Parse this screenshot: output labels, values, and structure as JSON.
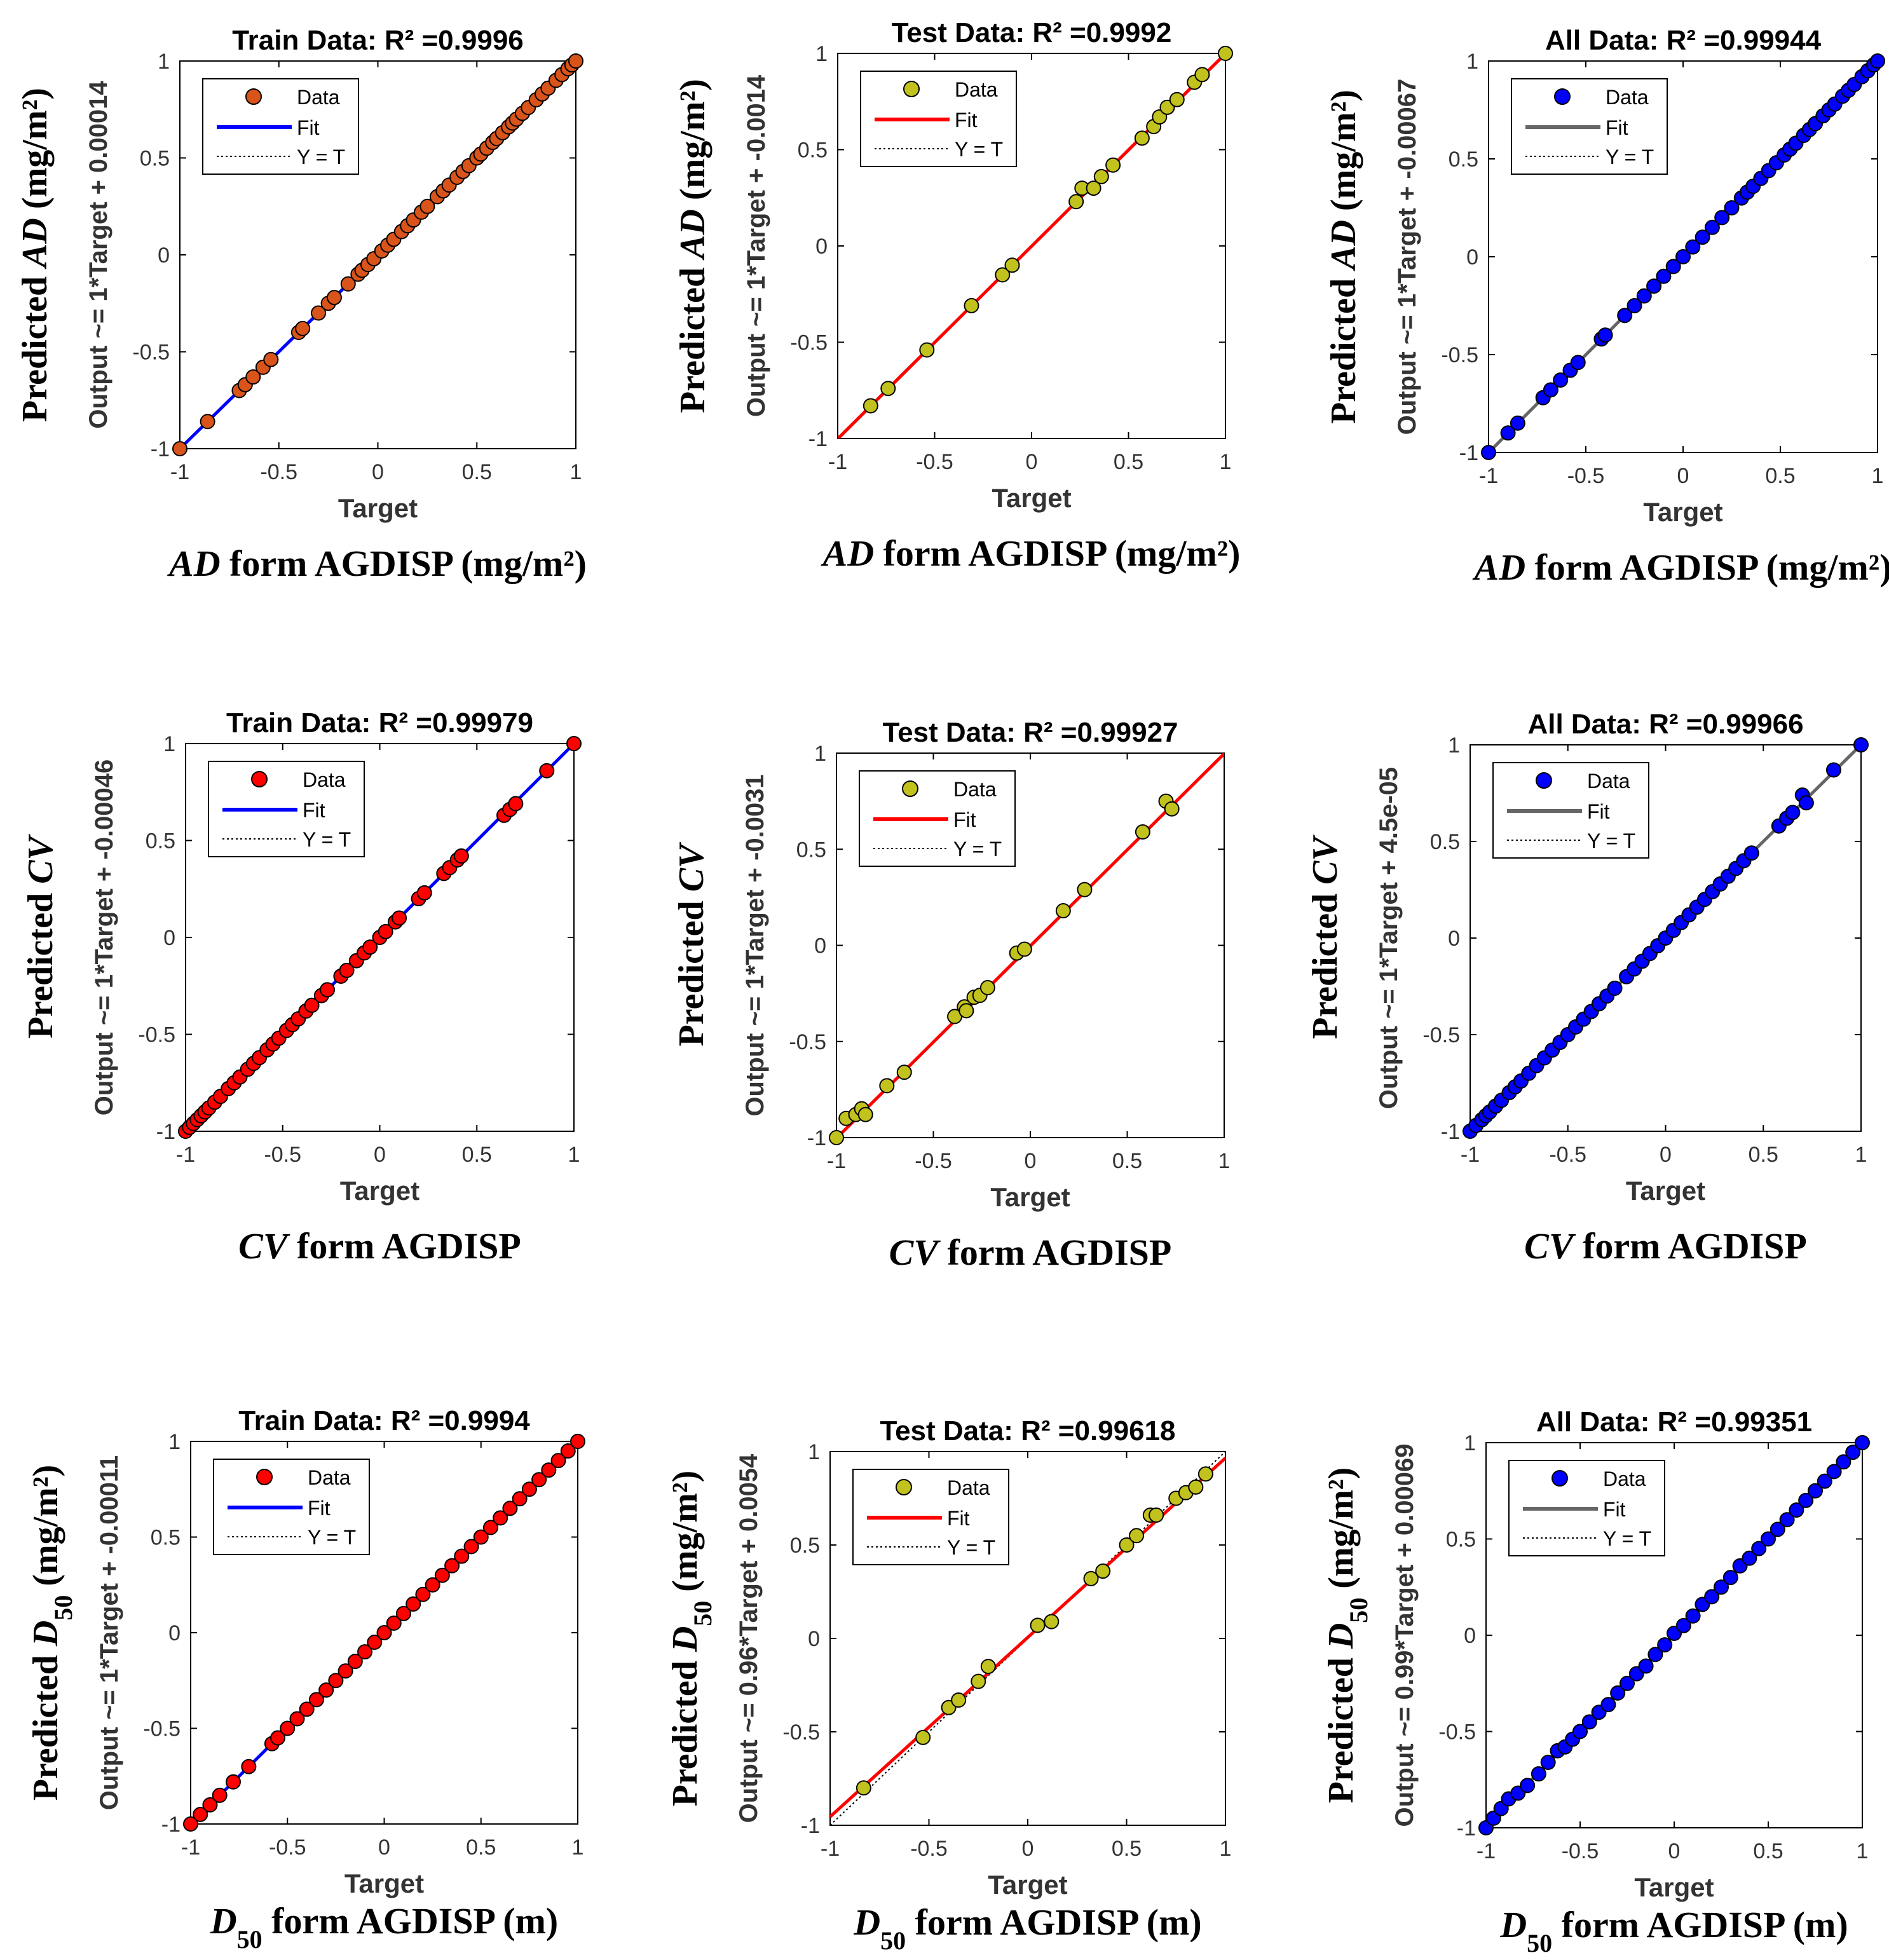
{
  "figure": {
    "axis_tick_labels": [
      "-1",
      "-0.5",
      "0",
      "0.5",
      "1"
    ],
    "legend": {
      "data": "Data",
      "fit": "Fit",
      "yt": "Y = T"
    }
  },
  "chart_data": [
    {
      "id": "ad-train",
      "type": "scatter",
      "title": "Train Data: R² =0.9996",
      "xlabel": "Target",
      "ylabel": "Output ~= 1*Target + 0.00014",
      "outer_ylabel": [
        "Predicted ",
        "AD",
        " (mg/m²)"
      ],
      "caption": [
        "AD",
        " form AGDISP (mg/m²)"
      ],
      "xlim": [
        -1,
        1
      ],
      "ylim": [
        -1,
        1
      ],
      "fit": {
        "slope": 1,
        "intercept": 0.00014
      },
      "marker_color": "#d9541a",
      "fit_color": "#0000ff",
      "x": [
        -1,
        -0.86,
        -0.7,
        -0.67,
        -0.63,
        -0.58,
        -0.54,
        -0.4,
        -0.38,
        -0.3,
        -0.25,
        -0.22,
        -0.15,
        -0.1,
        -0.08,
        -0.05,
        -0.02,
        0.02,
        0.05,
        0.08,
        0.12,
        0.15,
        0.18,
        0.22,
        0.25,
        0.3,
        0.33,
        0.36,
        0.4,
        0.43,
        0.46,
        0.5,
        0.52,
        0.55,
        0.58,
        0.6,
        0.63,
        0.66,
        0.68,
        0.7,
        0.73,
        0.76,
        0.8,
        0.83,
        0.86,
        0.9,
        0.93,
        0.96,
        0.98,
        1
      ],
      "y": [
        -1,
        -0.86,
        -0.7,
        -0.67,
        -0.63,
        -0.58,
        -0.54,
        -0.4,
        -0.38,
        -0.3,
        -0.25,
        -0.22,
        -0.15,
        -0.1,
        -0.08,
        -0.05,
        -0.02,
        0.02,
        0.05,
        0.08,
        0.12,
        0.15,
        0.18,
        0.22,
        0.25,
        0.3,
        0.33,
        0.36,
        0.4,
        0.43,
        0.46,
        0.5,
        0.52,
        0.55,
        0.58,
        0.6,
        0.63,
        0.66,
        0.68,
        0.7,
        0.73,
        0.76,
        0.8,
        0.83,
        0.86,
        0.9,
        0.93,
        0.96,
        0.98,
        1
      ]
    },
    {
      "id": "ad-test",
      "type": "scatter",
      "title": "Test Data: R² =0.9992",
      "xlabel": "Target",
      "ylabel": "Output ~= 1*Target + -0.0014",
      "outer_ylabel": [
        "Predicted ",
        "AD",
        " (mg/m²)"
      ],
      "caption": [
        "AD",
        " form AGDISP (mg/m²)"
      ],
      "xlim": [
        -1,
        1
      ],
      "ylim": [
        -1,
        1
      ],
      "fit": {
        "slope": 1,
        "intercept": -0.0014
      },
      "marker_color": "#c2c21f",
      "fit_color": "#ff0000",
      "x": [
        -0.83,
        -0.74,
        -0.54,
        -0.31,
        -0.15,
        -0.1,
        0.23,
        0.26,
        0.32,
        0.36,
        0.42,
        0.57,
        0.63,
        0.66,
        0.7,
        0.75,
        0.84,
        0.88,
        1
      ],
      "y": [
        -0.83,
        -0.74,
        -0.54,
        -0.31,
        -0.15,
        -0.1,
        0.23,
        0.3,
        0.3,
        0.36,
        0.42,
        0.56,
        0.62,
        0.67,
        0.72,
        0.76,
        0.85,
        0.89,
        1
      ]
    },
    {
      "id": "ad-all",
      "type": "scatter",
      "title": "All Data: R² =0.99944",
      "xlabel": "Target",
      "ylabel": "Output ~= 1*Target + -0.00067",
      "outer_ylabel": [
        "Predicted ",
        "AD",
        " (mg/m²)"
      ],
      "caption": [
        "AD",
        " form AGDISP (mg/m²)"
      ],
      "xlim": [
        -1,
        1
      ],
      "ylim": [
        -1,
        1
      ],
      "fit": {
        "slope": 1,
        "intercept": -0.00067
      },
      "marker_color": "#0000ff",
      "fit_color": "#666666",
      "x": [
        -1,
        -0.9,
        -0.85,
        -0.72,
        -0.68,
        -0.63,
        -0.58,
        -0.54,
        -0.42,
        -0.4,
        -0.3,
        -0.25,
        -0.2,
        -0.15,
        -0.1,
        -0.05,
        0,
        0.05,
        0.1,
        0.15,
        0.2,
        0.25,
        0.3,
        0.33,
        0.36,
        0.4,
        0.44,
        0.48,
        0.52,
        0.55,
        0.58,
        0.62,
        0.65,
        0.68,
        0.72,
        0.75,
        0.78,
        0.82,
        0.85,
        0.88,
        0.92,
        0.95,
        0.98,
        1
      ],
      "y": [
        -1,
        -0.9,
        -0.85,
        -0.72,
        -0.68,
        -0.63,
        -0.58,
        -0.54,
        -0.42,
        -0.4,
        -0.3,
        -0.25,
        -0.2,
        -0.15,
        -0.1,
        -0.05,
        0,
        0.05,
        0.1,
        0.15,
        0.2,
        0.25,
        0.3,
        0.33,
        0.36,
        0.4,
        0.44,
        0.48,
        0.52,
        0.55,
        0.58,
        0.62,
        0.65,
        0.68,
        0.72,
        0.75,
        0.78,
        0.82,
        0.85,
        0.88,
        0.92,
        0.95,
        0.98,
        1
      ]
    },
    {
      "id": "cv-train",
      "type": "scatter",
      "title": "Train Data: R² =0.99979",
      "xlabel": "Target",
      "ylabel": "Output ~= 1*Target + -0.00046",
      "outer_ylabel": [
        "Predicted ",
        "CV",
        ""
      ],
      "caption": [
        "CV",
        " form AGDISP"
      ],
      "xlim": [
        -1,
        1
      ],
      "ylim": [
        -1,
        1
      ],
      "fit": {
        "slope": 1,
        "intercept": -0.00046
      },
      "marker_color": "#ff0000",
      "fit_color": "#0000ff",
      "x": [
        -1,
        -0.98,
        -0.96,
        -0.94,
        -0.92,
        -0.9,
        -0.88,
        -0.85,
        -0.82,
        -0.78,
        -0.75,
        -0.72,
        -0.68,
        -0.65,
        -0.62,
        -0.58,
        -0.55,
        -0.52,
        -0.48,
        -0.45,
        -0.42,
        -0.38,
        -0.35,
        -0.3,
        -0.27,
        -0.2,
        -0.17,
        -0.12,
        -0.08,
        -0.05,
        0,
        0.03,
        0.08,
        0.1,
        0.2,
        0.23,
        0.33,
        0.36,
        0.4,
        0.42,
        0.64,
        0.67,
        0.7,
        0.86,
        1
      ],
      "y": [
        -1,
        -0.98,
        -0.96,
        -0.94,
        -0.92,
        -0.9,
        -0.88,
        -0.85,
        -0.82,
        -0.78,
        -0.75,
        -0.72,
        -0.68,
        -0.65,
        -0.62,
        -0.58,
        -0.55,
        -0.52,
        -0.48,
        -0.45,
        -0.42,
        -0.38,
        -0.35,
        -0.3,
        -0.27,
        -0.2,
        -0.17,
        -0.12,
        -0.08,
        -0.05,
        0,
        0.03,
        0.08,
        0.1,
        0.2,
        0.23,
        0.33,
        0.36,
        0.4,
        0.42,
        0.63,
        0.66,
        0.69,
        0.86,
        1
      ]
    },
    {
      "id": "cv-test",
      "type": "scatter",
      "title": "Test Data: R² =0.99927",
      "xlabel": "Target",
      "ylabel": "Output ~= 1*Target + -0.0031",
      "outer_ylabel": [
        "Predicted ",
        "CV",
        ""
      ],
      "caption": [
        "CV",
        " form AGDISP"
      ],
      "xlim": [
        -1,
        1
      ],
      "ylim": [
        -1,
        1
      ],
      "fit": {
        "slope": 1,
        "intercept": -0.0031
      },
      "marker_color": "#c2c21f",
      "fit_color": "#ff0000",
      "x": [
        -1,
        -0.95,
        -0.9,
        -0.87,
        -0.85,
        -0.74,
        -0.65,
        -0.39,
        -0.34,
        -0.33,
        -0.29,
        -0.26,
        -0.22,
        -0.07,
        -0.03,
        0.17,
        0.28,
        0.58,
        0.7,
        0.73
      ],
      "y": [
        -1,
        -0.9,
        -0.88,
        -0.85,
        -0.88,
        -0.73,
        -0.66,
        -0.37,
        -0.32,
        -0.34,
        -0.27,
        -0.26,
        -0.22,
        -0.04,
        -0.02,
        0.18,
        0.29,
        0.59,
        0.75,
        0.71
      ]
    },
    {
      "id": "cv-all",
      "type": "scatter",
      "title": "All Data: R² =0.99966",
      "xlabel": "Target",
      "ylabel": "Output ~= 1*Target + 4.5e-05",
      "outer_ylabel": [
        "Predicted ",
        "CV",
        ""
      ],
      "caption": [
        "CV",
        " form AGDISP"
      ],
      "xlim": [
        -1,
        1
      ],
      "ylim": [
        -1,
        1
      ],
      "fit": {
        "slope": 1,
        "intercept": 4.5e-05
      },
      "marker_color": "#0000ff",
      "fit_color": "#666666",
      "x": [
        -1,
        -0.97,
        -0.94,
        -0.92,
        -0.9,
        -0.87,
        -0.84,
        -0.8,
        -0.77,
        -0.74,
        -0.7,
        -0.66,
        -0.62,
        -0.58,
        -0.54,
        -0.5,
        -0.46,
        -0.42,
        -0.38,
        -0.34,
        -0.3,
        -0.26,
        -0.2,
        -0.16,
        -0.12,
        -0.08,
        -0.04,
        0,
        0.04,
        0.08,
        0.12,
        0.16,
        0.2,
        0.24,
        0.28,
        0.32,
        0.36,
        0.4,
        0.44,
        0.58,
        0.62,
        0.65,
        0.7,
        0.72,
        0.86,
        1
      ],
      "y": [
        -1,
        -0.97,
        -0.94,
        -0.92,
        -0.9,
        -0.87,
        -0.84,
        -0.8,
        -0.77,
        -0.74,
        -0.7,
        -0.66,
        -0.62,
        -0.58,
        -0.54,
        -0.5,
        -0.46,
        -0.42,
        -0.38,
        -0.34,
        -0.3,
        -0.26,
        -0.2,
        -0.16,
        -0.12,
        -0.08,
        -0.04,
        0,
        0.04,
        0.08,
        0.12,
        0.16,
        0.2,
        0.24,
        0.28,
        0.32,
        0.36,
        0.4,
        0.44,
        0.58,
        0.62,
        0.65,
        0.74,
        0.7,
        0.87,
        1
      ]
    },
    {
      "id": "d50-train",
      "type": "scatter",
      "title": "Train Data: R² =0.9994",
      "xlabel": "Target",
      "ylabel": "Output ~= 1*Target + -0.00011",
      "outer_ylabel": [
        "Predicted ",
        "D",
        "50",
        " (mg/m²)"
      ],
      "caption": [
        "D",
        "50",
        "  form AGDISP (m)"
      ],
      "xlim": [
        -1,
        1
      ],
      "ylim": [
        -1,
        1
      ],
      "fit": {
        "slope": 1,
        "intercept": -0.00011
      },
      "marker_color": "#ff0000",
      "fit_color": "#0000ff",
      "x": [
        -1,
        -0.95,
        -0.9,
        -0.85,
        -0.78,
        -0.7,
        -0.58,
        -0.55,
        -0.5,
        -0.45,
        -0.4,
        -0.35,
        -0.3,
        -0.25,
        -0.2,
        -0.15,
        -0.1,
        -0.05,
        0,
        0.05,
        0.1,
        0.15,
        0.2,
        0.25,
        0.3,
        0.35,
        0.4,
        0.45,
        0.5,
        0.55,
        0.6,
        0.65,
        0.7,
        0.75,
        0.8,
        0.85,
        0.9,
        0.95,
        1
      ],
      "y": [
        -1,
        -0.95,
        -0.9,
        -0.85,
        -0.78,
        -0.7,
        -0.58,
        -0.55,
        -0.5,
        -0.45,
        -0.4,
        -0.35,
        -0.3,
        -0.25,
        -0.2,
        -0.15,
        -0.1,
        -0.05,
        0,
        0.05,
        0.1,
        0.15,
        0.2,
        0.25,
        0.3,
        0.35,
        0.4,
        0.45,
        0.5,
        0.55,
        0.6,
        0.65,
        0.7,
        0.75,
        0.8,
        0.85,
        0.9,
        0.95,
        1
      ]
    },
    {
      "id": "d50-test",
      "type": "scatter",
      "title": "Test Data: R² =0.99618",
      "xlabel": "Target",
      "ylabel": "Output ~= 0.96*Target + 0.0054",
      "outer_ylabel": [
        "Predicted ",
        "D",
        "50",
        " (mg/m²)"
      ],
      "caption": [
        "D",
        "50",
        "  form AGDISP (m)"
      ],
      "xlim": [
        -1,
        1
      ],
      "ylim": [
        -1,
        1
      ],
      "fit": {
        "slope": 0.96,
        "intercept": 0.0054
      },
      "marker_color": "#c2c21f",
      "fit_color": "#ff0000",
      "x": [
        -0.83,
        -0.53,
        -0.4,
        -0.35,
        -0.25,
        -0.2,
        0.05,
        0.12,
        0.32,
        0.38,
        0.5,
        0.55,
        0.62,
        0.65,
        0.75,
        0.8,
        0.85,
        0.9
      ],
      "y": [
        -0.8,
        -0.53,
        -0.37,
        -0.33,
        -0.23,
        -0.15,
        0.07,
        0.09,
        0.32,
        0.36,
        0.5,
        0.55,
        0.66,
        0.66,
        0.75,
        0.78,
        0.81,
        0.88
      ]
    },
    {
      "id": "d50-all",
      "type": "scatter",
      "title": "All Data: R² =0.99351",
      "xlabel": "Target",
      "ylabel": "Output ~= 0.99*Target + 0.00069",
      "outer_ylabel": [
        "Predicted ",
        "D",
        "50",
        " (mg/m²)"
      ],
      "caption": [
        "D",
        "50",
        " form AGDISP (m)"
      ],
      "xlim": [
        -1,
        1
      ],
      "ylim": [
        -1,
        1
      ],
      "fit": {
        "slope": 0.99,
        "intercept": 0.00069
      },
      "marker_color": "#0000ff",
      "fit_color": "#666666",
      "x": [
        -1,
        -0.96,
        -0.92,
        -0.88,
        -0.83,
        -0.78,
        -0.72,
        -0.67,
        -0.62,
        -0.58,
        -0.54,
        -0.5,
        -0.45,
        -0.4,
        -0.35,
        -0.3,
        -0.25,
        -0.2,
        -0.15,
        -0.1,
        -0.05,
        0,
        0.05,
        0.1,
        0.15,
        0.2,
        0.25,
        0.3,
        0.35,
        0.4,
        0.45,
        0.5,
        0.55,
        0.6,
        0.65,
        0.7,
        0.75,
        0.8,
        0.85,
        0.9,
        0.95,
        1
      ],
      "y": [
        -1,
        -0.95,
        -0.9,
        -0.85,
        -0.82,
        -0.78,
        -0.72,
        -0.66,
        -0.6,
        -0.58,
        -0.54,
        -0.5,
        -0.45,
        -0.4,
        -0.36,
        -0.3,
        -0.25,
        -0.2,
        -0.16,
        -0.1,
        -0.05,
        0.01,
        0.05,
        0.1,
        0.16,
        0.2,
        0.25,
        0.3,
        0.36,
        0.4,
        0.45,
        0.5,
        0.55,
        0.6,
        0.65,
        0.7,
        0.75,
        0.8,
        0.85,
        0.9,
        0.95,
        1
      ]
    }
  ]
}
